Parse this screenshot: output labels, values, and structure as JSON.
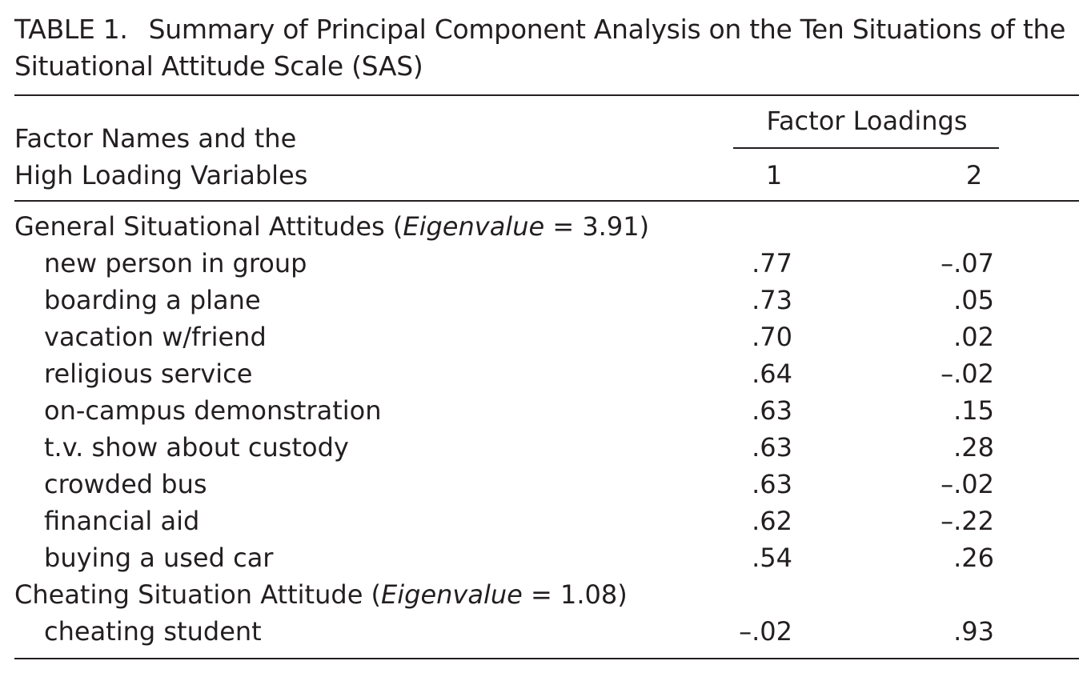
{
  "caption": {
    "label": "TABLE 1.",
    "line1": "Summary of Principal Component Analysis on the Ten Situations of the",
    "line2": "Situational Attitude Scale (SAS)"
  },
  "header": {
    "stub_line1": "Factor Names and the",
    "stub_line2": "High Loading Variables",
    "spanner": "Factor Loadings",
    "col1": "1",
    "col2": "2"
  },
  "groups": [
    {
      "name": "General Situational Attitudes (",
      "eigen_word": "Eigenvalue",
      "eigen_rest": " = 3.91)",
      "items": [
        {
          "name": "new person in group",
          "f1": ".77",
          "f2": "–.07"
        },
        {
          "name": "boarding a plane",
          "f1": ".73",
          "f2": ".05"
        },
        {
          "name": "vacation w/friend",
          "f1": ".70",
          "f2": ".02"
        },
        {
          "name": "religious service",
          "f1": ".64",
          "f2": "–.02"
        },
        {
          "name": "on-campus demonstration",
          "f1": ".63",
          "f2": ".15"
        },
        {
          "name": "t.v. show about custody",
          "f1": ".63",
          "f2": ".28"
        },
        {
          "name": "crowded bus",
          "f1": ".63",
          "f2": "–.02"
        },
        {
          "name": "financial aid",
          "f1": ".62",
          "f2": "–.22"
        },
        {
          "name": "buying a used car",
          "f1": ".54",
          "f2": ".26"
        }
      ]
    },
    {
      "name": "Cheating Situation Attitude (",
      "eigen_word": "Eigenvalue",
      "eigen_rest": " = 1.08)",
      "items": [
        {
          "name": "cheating student",
          "f1": "–.02",
          "f2": ".93"
        }
      ]
    }
  ]
}
